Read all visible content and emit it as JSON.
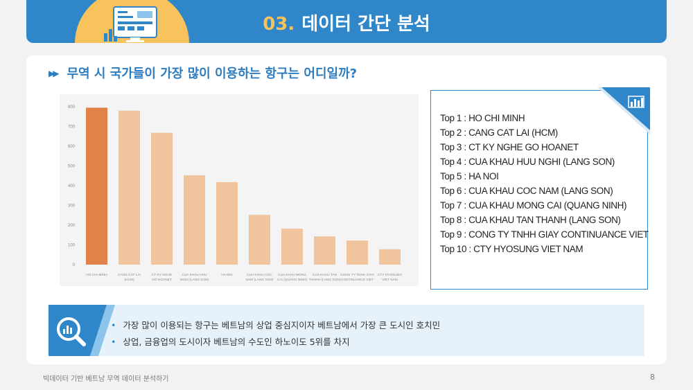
{
  "header": {
    "section_number": "03.",
    "title": "데이터 간단 분석",
    "color": "#2f86c8",
    "accent": "#f8c25c"
  },
  "question": {
    "arrow_glyph": "▶▶",
    "text": "무역 시 국가들이 가장 많이 이용하는 항구는 어디일까?"
  },
  "chart_data": {
    "type": "bar",
    "categories": [
      [
        "HO CHI MINH"
      ],
      [
        "CANG CAT LAI",
        "(HCM)"
      ],
      [
        "CT KY NGHE",
        "GO HOANET"
      ],
      [
        "CUA KHAU HUU",
        "NGHI (LANG SON)"
      ],
      [
        "HA NOI"
      ],
      [
        "CUA KHAU COC",
        "NAM (LANG SON)"
      ],
      [
        "CUA KHAU MONG",
        "CAI (QUANG NINH)"
      ],
      [
        "CUA KHAU TAN",
        "THANH (LANG SON)"
      ],
      [
        "CONG TY TNHH GIAY",
        "CONTINUANCE VIET"
      ],
      [
        "CTY HYOSUNG",
        "VIET NAM"
      ]
    ],
    "values": [
      795,
      780,
      668,
      452,
      418,
      252,
      182,
      143,
      122,
      78
    ],
    "ylim": [
      0,
      800
    ],
    "yticks": [
      0,
      100,
      200,
      300,
      400,
      500,
      600,
      700,
      800
    ],
    "highlight_color": "#e0824a",
    "bar_color": "#f0c49c",
    "grid": false
  },
  "top_list": [
    "Top 1 : HO CHI MINH",
    "Top 2 : CANG CAT LAI (HCM)",
    "Top 3 : CT KY NGHE GO HOANET",
    "Top 4 : CUA KHAU HUU NGHI (LANG SON)",
    "Top 5 : HA NOI",
    "Top 6 : CUA KHAU COC NAM (LANG SON)",
    "Top 7 : CUA KHAU MONG CAI (QUANG NINH)",
    "Top 8 : CUA KHAU TAN THANH (LANG SON)",
    "Top 9 : CONG TY TNHH GIAY CONTINUANCE VIET",
    "Top 10 : CTY HYOSUNG VIET NAM"
  ],
  "summary": [
    "가장 많이 이용되는 항구는 베트남의 상업 중심지이자 베트남에서 가장 큰 도시인 호치민",
    "상업, 금융업의 도시이자 베트남의 수도인 하노이도 5위를 차지"
  ],
  "icons": {
    "header": "monitor-chart-icon",
    "corner": "bar-chart-icon",
    "summary": "magnifier-chart-icon"
  },
  "footer": {
    "text": "빅데이터 기반 베트남 무역 데이터 분석하기",
    "page": "8"
  }
}
